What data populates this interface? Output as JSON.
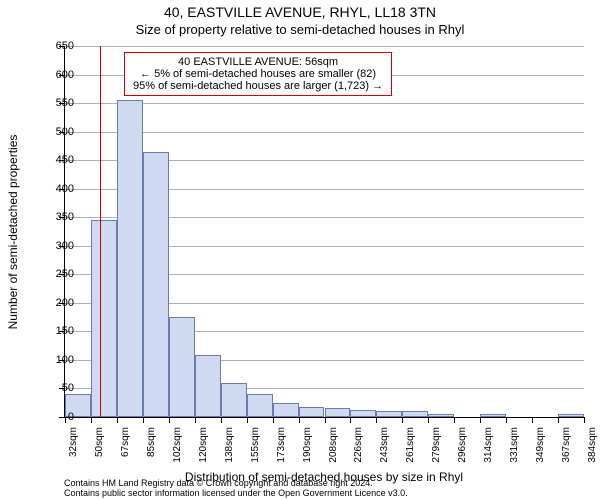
{
  "title": "40, EASTVILLE AVENUE, RHYL, LL18 3TN",
  "subtitle": "Size of property relative to semi-detached houses in Rhyl",
  "y_axis_label": "Number of semi-detached properties",
  "x_axis_title": "Distribution of semi-detached houses by size in Rhyl",
  "footer": {
    "line1": "Contains HM Land Registry data © Crown copyright and database right 2024.",
    "line2": "Contains public sector information licensed under the Open Government Licence v3.0."
  },
  "info_box": {
    "line1": "40 EASTVILLE AVENUE: 56sqm",
    "line2": "← 5% of semi-detached houses are smaller (82)",
    "line3": "95% of semi-detached houses are larger (1,723) →",
    "border_color": "#cc0000"
  },
  "chart": {
    "type": "histogram",
    "ylim": [
      0,
      650
    ],
    "ytick_step": 50,
    "grid_color": "#b0b0b0",
    "bar_fill": "#cfd9f2",
    "bar_border": "#6a7da8",
    "marker_color": "#cc0000",
    "marker_x": 56,
    "x_start": 32,
    "x_step": 17.6,
    "x_labels": [
      "32sqm",
      "50sqm",
      "67sqm",
      "85sqm",
      "102sqm",
      "120sqm",
      "138sqm",
      "155sqm",
      "173sqm",
      "190sqm",
      "208sqm",
      "226sqm",
      "243sqm",
      "261sqm",
      "279sqm",
      "296sqm",
      "314sqm",
      "331sqm",
      "349sqm",
      "367sqm",
      "384sqm"
    ],
    "values": [
      40,
      345,
      555,
      465,
      175,
      108,
      60,
      40,
      25,
      18,
      15,
      12,
      10,
      10,
      6,
      0,
      5,
      0,
      0,
      5
    ]
  }
}
